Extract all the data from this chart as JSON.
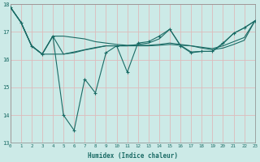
{
  "xlabel": "Humidex (Indice chaleur)",
  "bg_color": "#cceae7",
  "grid_color": "#ddbbbb",
  "line_color": "#1a6b65",
  "ylim": [
    13,
    18
  ],
  "xlim": [
    0,
    23
  ],
  "yticks": [
    13,
    14,
    15,
    16,
    17,
    18
  ],
  "xticks": [
    0,
    1,
    2,
    3,
    4,
    5,
    6,
    7,
    8,
    9,
    10,
    11,
    12,
    13,
    14,
    15,
    16,
    17,
    18,
    19,
    20,
    21,
    22,
    23
  ],
  "main_series": [
    17.9,
    17.35,
    16.5,
    16.2,
    16.85,
    14.0,
    13.45,
    15.3,
    14.8,
    16.25,
    16.5,
    15.55,
    16.6,
    16.65,
    16.85,
    17.1,
    16.5,
    16.25,
    16.3,
    16.3,
    16.6,
    16.95,
    17.15,
    17.4
  ],
  "trend1": [
    17.9,
    17.35,
    16.5,
    16.2,
    16.2,
    16.2,
    16.28,
    16.36,
    16.44,
    16.5,
    16.5,
    16.5,
    16.5,
    16.5,
    16.52,
    16.55,
    16.52,
    16.5,
    16.42,
    16.36,
    16.42,
    16.55,
    16.7,
    17.4
  ],
  "trend2": [
    17.9,
    17.35,
    16.5,
    16.2,
    16.85,
    16.85,
    16.8,
    16.75,
    16.65,
    16.6,
    16.55,
    16.52,
    16.52,
    16.52,
    16.55,
    16.6,
    16.55,
    16.5,
    16.45,
    16.4,
    16.5,
    16.65,
    16.8,
    17.4
  ],
  "trend3": [
    17.9,
    17.35,
    16.5,
    16.2,
    16.85,
    16.2,
    16.25,
    16.35,
    16.42,
    16.5,
    16.5,
    16.5,
    16.55,
    16.6,
    16.75,
    17.1,
    16.52,
    16.28,
    16.3,
    16.3,
    16.58,
    16.95,
    17.15,
    17.4
  ]
}
